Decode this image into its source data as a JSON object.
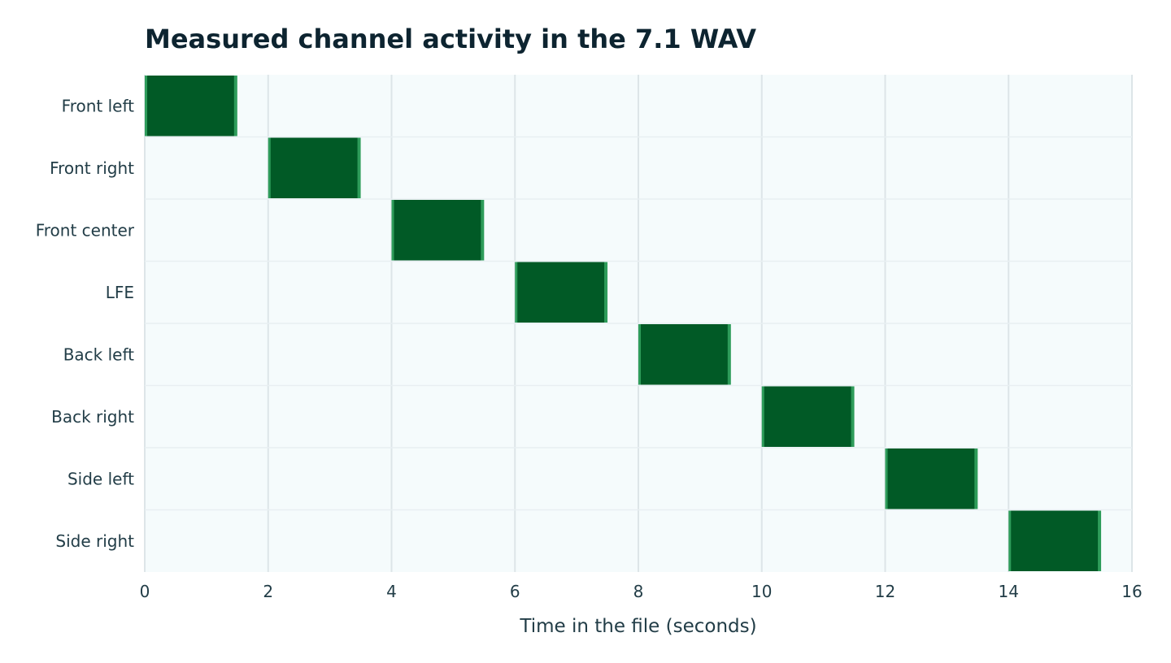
{
  "chart_data": {
    "type": "heatmap",
    "title": "Measured channel activity in the 7.1 WAV",
    "xlabel": "Time in the file (seconds)",
    "ylabel": "",
    "xlim": [
      0,
      16
    ],
    "x_ticks": [
      0,
      2,
      4,
      6,
      8,
      10,
      12,
      14,
      16
    ],
    "grid": true,
    "channels": [
      "Front left",
      "Front right",
      "Front center",
      "LFE",
      "Back left",
      "Back right",
      "Side left",
      "Side right"
    ],
    "segments": [
      {
        "channel": "Front left",
        "start": 0,
        "end": 1.5
      },
      {
        "channel": "Front right",
        "start": 2,
        "end": 3.5
      },
      {
        "channel": "Front center",
        "start": 4,
        "end": 5.5
      },
      {
        "channel": "LFE",
        "start": 6,
        "end": 7.5
      },
      {
        "channel": "Back left",
        "start": 8,
        "end": 9.5
      },
      {
        "channel": "Back right",
        "start": 10,
        "end": 11.5
      },
      {
        "channel": "Side left",
        "start": 12,
        "end": 13.5
      },
      {
        "channel": "Side right",
        "start": 14,
        "end": 15.5
      }
    ],
    "colors": {
      "background": "#f5fbfc",
      "active": "#015a26",
      "edge": "#2e9c5a",
      "grid": "#dde5e8"
    }
  }
}
